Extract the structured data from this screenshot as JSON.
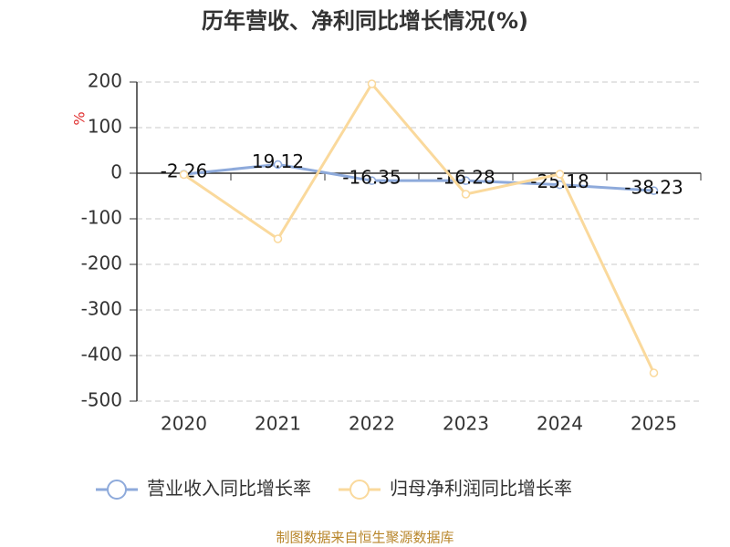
{
  "chart_data": {
    "type": "line",
    "title": "历年营收、净利同比增长情况(%)",
    "y_label": "%",
    "categories": [
      "2020",
      "2021",
      "2022",
      "2023",
      "2024",
      "2025"
    ],
    "series": [
      {
        "name": "营业收入同比增长率",
        "color": "#8eaadb",
        "values": [
          -2.26,
          19.12,
          -16.35,
          -16.28,
          -25.18,
          -38.23
        ],
        "show_labels": true
      },
      {
        "name": "归母净利润同比增长率",
        "color": "#fad99c",
        "values": [
          -3,
          -144,
          196,
          -46,
          -2,
          -438
        ],
        "show_labels": false
      }
    ],
    "ylim": [
      -500,
      200
    ],
    "yticks": [
      200,
      100,
      0,
      -100,
      -200,
      -300,
      -400,
      -500
    ],
    "grid": true,
    "source": "制图数据来自恒生聚源数据库"
  }
}
